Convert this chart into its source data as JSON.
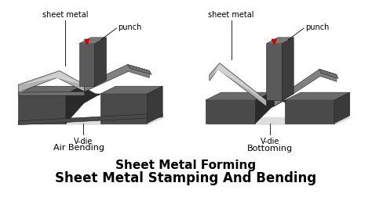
{
  "bg_color": "#ffffff",
  "title1": "Sheet Metal Forming",
  "title2": "Sheet Metal Stamping And Bending",
  "title1_fontsize": 11,
  "title2_fontsize": 12,
  "label_sheet_metal": "sheet metal",
  "label_punch": "punch",
  "label_vdie": "V-die",
  "label_air_bending": "Air Bending",
  "label_bottoming": "Bottoming",
  "label_fontsize": 7,
  "sublabel_fontsize": 8,
  "red_arrow_color": "#cc0000",
  "die_top_color": "#6a6a6a",
  "die_front_color": "#4a4a4a",
  "die_side_color": "#3a3a3a",
  "die_groove_color": "#2a2a2a",
  "punch_front_color": "#5a5a5a",
  "punch_top_color": "#7a7a7a",
  "punch_side_color": "#3d3d3d",
  "sheet_top_color": "#b0b0b0",
  "sheet_top_light_color": "#d0d0d0",
  "sheet_side_color": "#808080",
  "sheet_dark_color": "#707070",
  "line_color": "#000000",
  "line_width": 0.6,
  "edge_color": "#222222",
  "edge_lw": 0.4,
  "shadow_color": "#dddddd"
}
